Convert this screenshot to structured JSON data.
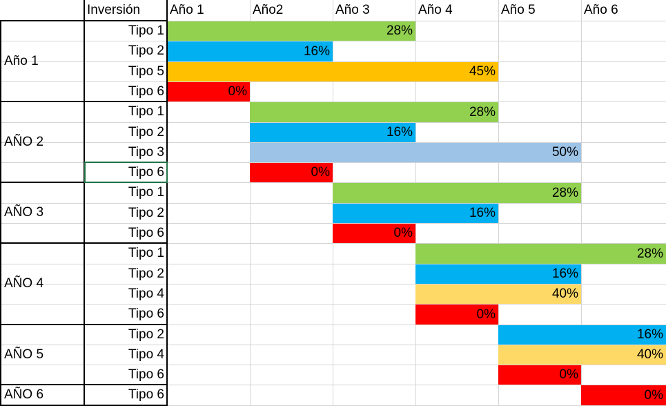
{
  "header": {
    "inversion": "Inversión",
    "years": [
      "Año 1",
      "Año2",
      "Año 3",
      "Año 4",
      "Año 5",
      "Año 6"
    ]
  },
  "colors": {
    "green": "#92d050",
    "blue": "#00b0f0",
    "orange": "#ffc000",
    "red": "#ff0000",
    "lightblue": "#9dc3e6",
    "lightyellow": "#ffd966",
    "grid": "#d4d4d4",
    "selection": "#217346"
  },
  "groups": [
    {
      "label": "Año 1",
      "rows": [
        {
          "type": "Tipo 1",
          "start": 1,
          "end": 3,
          "value": "28%",
          "color": "green"
        },
        {
          "type": "Tipo 2",
          "start": 1,
          "end": 2,
          "value": "16%",
          "color": "blue"
        },
        {
          "type": "Tipo 5",
          "start": 1,
          "end": 4,
          "value": "45%",
          "color": "orange"
        },
        {
          "type": "Tipo 6",
          "start": 1,
          "end": 1,
          "value": "0%",
          "color": "red"
        }
      ]
    },
    {
      "label": "AÑO 2",
      "rows": [
        {
          "type": "Tipo 1",
          "start": 2,
          "end": 4,
          "value": "28%",
          "color": "green"
        },
        {
          "type": "Tipo 2",
          "start": 2,
          "end": 3,
          "value": "16%",
          "color": "blue"
        },
        {
          "type": "Tipo 3",
          "start": 2,
          "end": 5,
          "value": "50%",
          "color": "lightblue"
        },
        {
          "type": "Tipo 6",
          "start": 2,
          "end": 2,
          "value": "0%",
          "color": "red"
        }
      ]
    },
    {
      "label": "AÑO 3",
      "rows": [
        {
          "type": "Tipo 1",
          "start": 3,
          "end": 5,
          "value": "28%",
          "color": "green"
        },
        {
          "type": "Tipo 2",
          "start": 3,
          "end": 4,
          "value": "16%",
          "color": "blue"
        },
        {
          "type": "Tipo 6",
          "start": 3,
          "end": 3,
          "value": "0%",
          "color": "red"
        }
      ]
    },
    {
      "label": "AÑO 4",
      "rows": [
        {
          "type": "Tipo 1",
          "start": 4,
          "end": 6,
          "value": "28%",
          "color": "green"
        },
        {
          "type": "Tipo 2",
          "start": 4,
          "end": 5,
          "value": "16%",
          "color": "blue"
        },
        {
          "type": "Tipo 4",
          "start": 4,
          "end": 5,
          "value": "40%",
          "color": "lightyellow"
        },
        {
          "type": "Tipo 6",
          "start": 4,
          "end": 4,
          "value": "0%",
          "color": "red"
        }
      ]
    },
    {
      "label": "AÑO 5",
      "rows": [
        {
          "type": "Tipo 2",
          "start": 5,
          "end": 6,
          "value": "16%",
          "color": "blue"
        },
        {
          "type": "Tipo 4",
          "start": 5,
          "end": 6,
          "value": "40%",
          "color": "lightyellow"
        },
        {
          "type": "Tipo 6",
          "start": 5,
          "end": 5,
          "value": "0%",
          "color": "red"
        }
      ]
    },
    {
      "label": "AÑO 6",
      "rows": [
        {
          "type": "Tipo 6",
          "start": 6,
          "end": 6,
          "value": "0%",
          "color": "red"
        }
      ]
    }
  ]
}
